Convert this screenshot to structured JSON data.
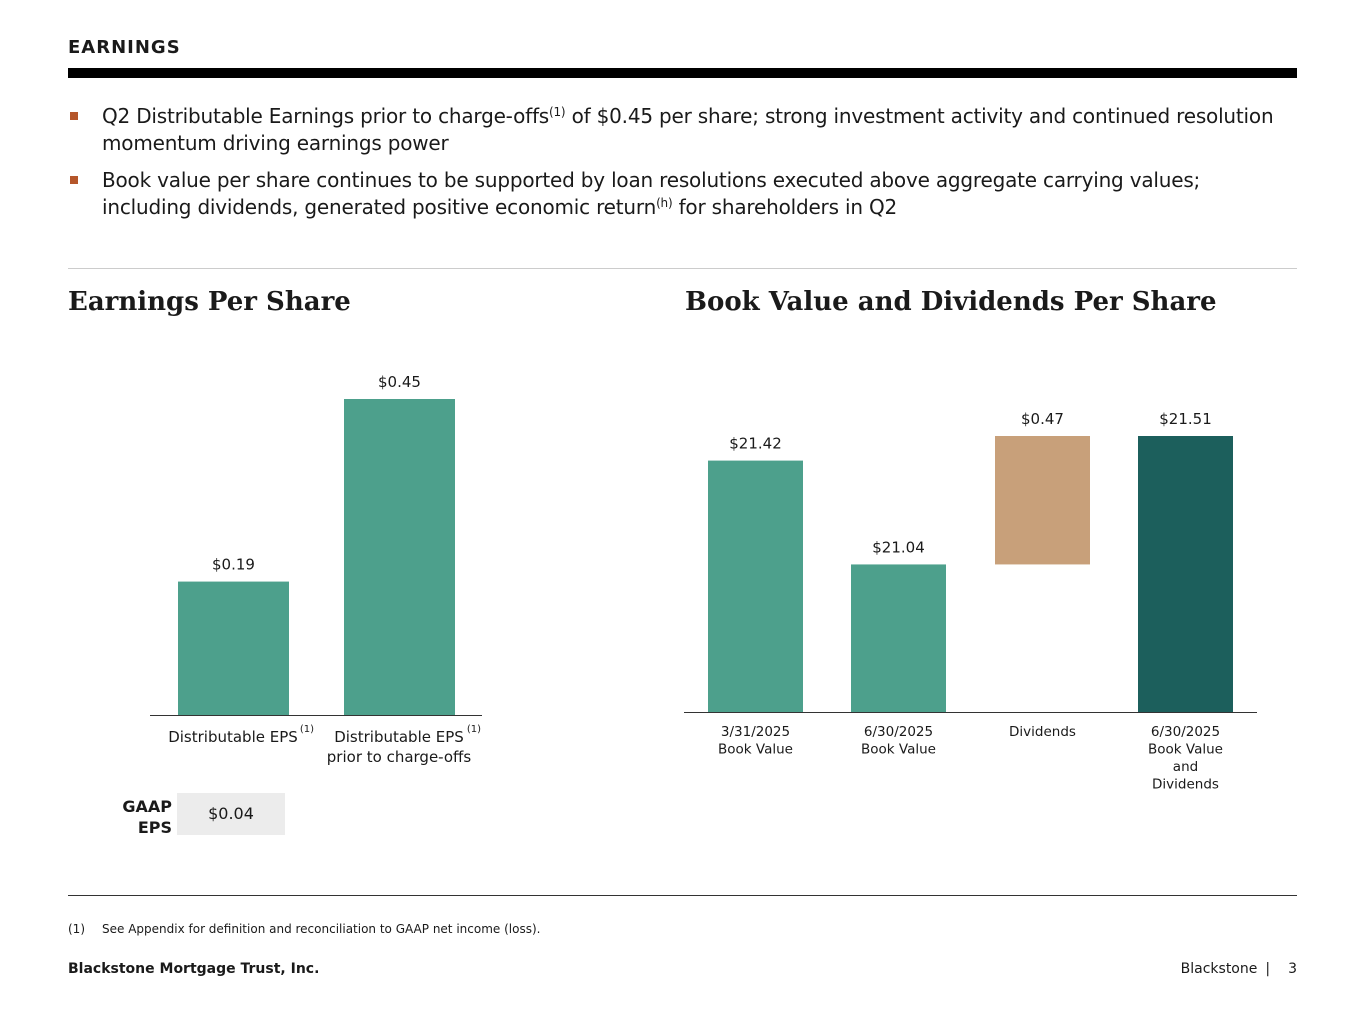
{
  "header": {
    "title": "EARNINGS"
  },
  "bullets": [
    {
      "before": "Q2 Distributable Earnings prior to charge-offs",
      "sup": "(1)",
      "after": " of $0.45 per share; strong investment activity and continued resolution momentum driving earnings power"
    },
    {
      "before": "Book value per share continues to be supported by loan resolutions executed above aggregate carrying values; including dividends, generated positive economic return",
      "sup": "(h)",
      "after": " for shareholders in Q2"
    }
  ],
  "colors": {
    "bar": "#4da08c",
    "dark_bar": "#1c5f5c",
    "dividend_bar": "#c8a07a",
    "bullet": "#b5562a"
  },
  "chart_data": [
    {
      "type": "bar",
      "title": "Earnings Per Share",
      "categories": [
        "Distributable EPS",
        "Distributable EPS prior to charge-offs"
      ],
      "category_sups": [
        "(1)",
        "(1)"
      ],
      "values": [
        0.19,
        0.45
      ],
      "data_labels": [
        "$0.19",
        "$0.45"
      ],
      "ylim": [
        0,
        0.5
      ],
      "grid": false
    },
    {
      "type": "bar",
      "title": "Book Value and Dividends Per Share",
      "categories": [
        "3/31/2025 Book Value",
        "6/30/2025 Book Value",
        "Dividends",
        "6/30/2025 Book Value and Dividends"
      ],
      "values": [
        21.42,
        21.04,
        0.47,
        21.51
      ],
      "floating_base": [
        null,
        null,
        21.04,
        null
      ],
      "data_labels": [
        "$21.42",
        "$21.04",
        "$0.47",
        "$21.51"
      ],
      "grid": false
    }
  ],
  "gaap": {
    "label": "GAAP EPS",
    "value": "$0.04"
  },
  "footnote": {
    "number": "(1)",
    "text": "See Appendix for definition and reconciliation to GAAP net income (loss)."
  },
  "footer": {
    "company": "Blackstone Mortgage Trust, Inc.",
    "brand": "Blackstone",
    "separator": "|",
    "page": "3"
  }
}
